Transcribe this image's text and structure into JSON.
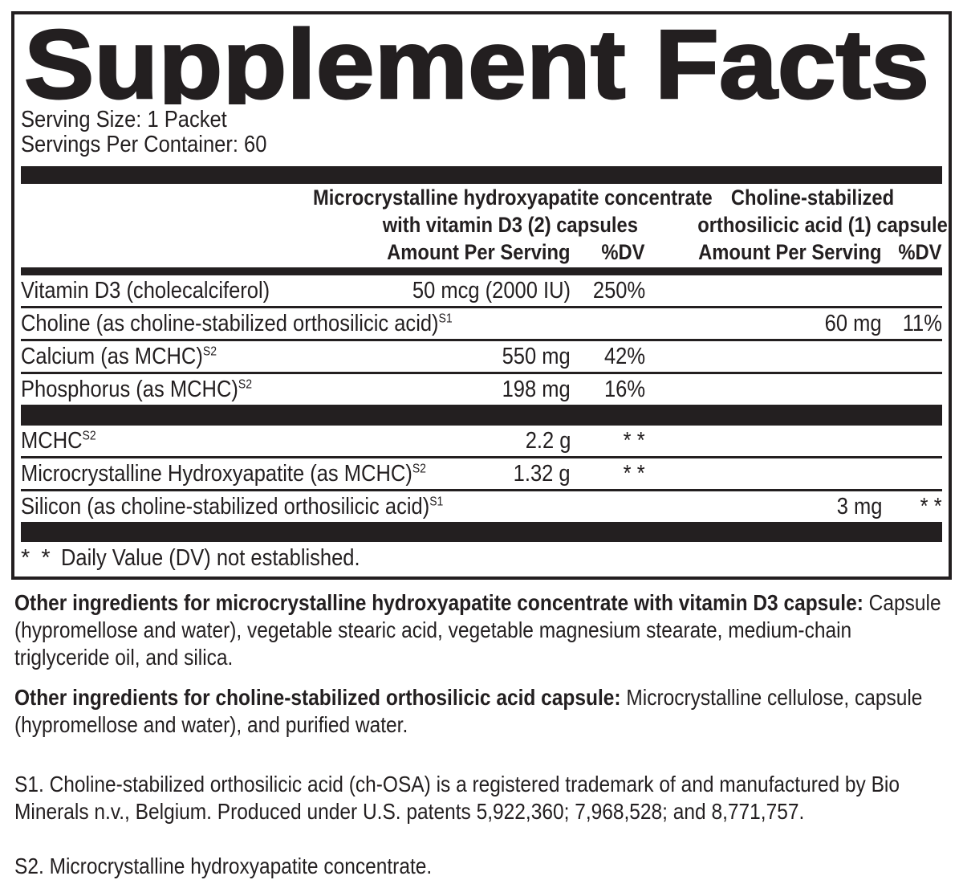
{
  "colors": {
    "ink": "#231f20",
    "background": "#ffffff"
  },
  "panel": {
    "title": "Supplement Facts",
    "serving_size": "Serving Size: 1 Packet",
    "servings_per_container": "Servings Per Container: 60",
    "column_groups": {
      "left": {
        "line1": "Microcrystalline hydroxyapatite concentrate",
        "line2": "with vitamin D3 (2) capsules",
        "amount_header": "Amount Per Serving",
        "dv_header": "%DV"
      },
      "right": {
        "line1": "Choline-stabilized",
        "line2": "orthosilicic acid (1) capsule",
        "amount_header": "Amount Per Serving",
        "dv_header": "%DV"
      }
    },
    "rows": [
      {
        "label": "Vitamin D3 (cholecalciferol)",
        "sup": "",
        "l_amt": "50 mcg (2000 IU)",
        "l_dv": "250%",
        "r_amt": "",
        "r_dv": ""
      },
      {
        "label": "Choline (as choline-stabilized orthosilicic acid)",
        "sup": "S1",
        "l_amt": "",
        "l_dv": "",
        "r_amt": "60 mg",
        "r_dv": "11%"
      },
      {
        "label": "Calcium (as MCHC)",
        "sup": "S2",
        "l_amt": "550 mg",
        "l_dv": "42%",
        "r_amt": "",
        "r_dv": ""
      },
      {
        "label": "Phosphorus (as MCHC)",
        "sup": "S2",
        "l_amt": "198 mg",
        "l_dv": "16%",
        "r_amt": "",
        "r_dv": ""
      },
      {
        "label": "MCHC",
        "sup": "S2",
        "l_amt": "2.2 g",
        "l_dv": "* *",
        "r_amt": "",
        "r_dv": ""
      },
      {
        "label": "Microcrystalline Hydroxyapatite (as MCHC)",
        "sup": "S2",
        "l_amt": "1.32 g",
        "l_dv": "* *",
        "r_amt": "",
        "r_dv": ""
      },
      {
        "label": "Silicon (as choline-stabilized orthosilicic acid)",
        "sup": "S1",
        "l_amt": "",
        "l_dv": "",
        "r_amt": "3 mg",
        "r_dv": "* *"
      }
    ],
    "daily_value_note": {
      "marker": "* *",
      "text": "Daily Value (DV) not established."
    }
  },
  "other_ingredients": [
    {
      "lead": "Other ingredients for microcrystalline hydroxyapatite concentrate with vitamin D3 capsule:",
      "text": "Capsule (hypromellose and water), vegetable stearic acid, vegetable magnesium stearate, medium-chain triglyceride oil, and silica."
    },
    {
      "lead": "Other ingredients for choline-stabilized orthosilicic acid capsule:",
      "text": "Microcrystalline cellulose, capsule (hypromellose and water), and purified water."
    }
  ],
  "footnotes": [
    "S1. Choline-stabilized orthosilicic acid (ch-OSA) is a registered trademark of and manufactured by Bio Minerals n.v., Belgium. Produced under U.S. patents 5,922,360; 7,968,528; and 8,771,757.",
    "S2. Microcrystalline hydroxyapatite concentrate."
  ]
}
